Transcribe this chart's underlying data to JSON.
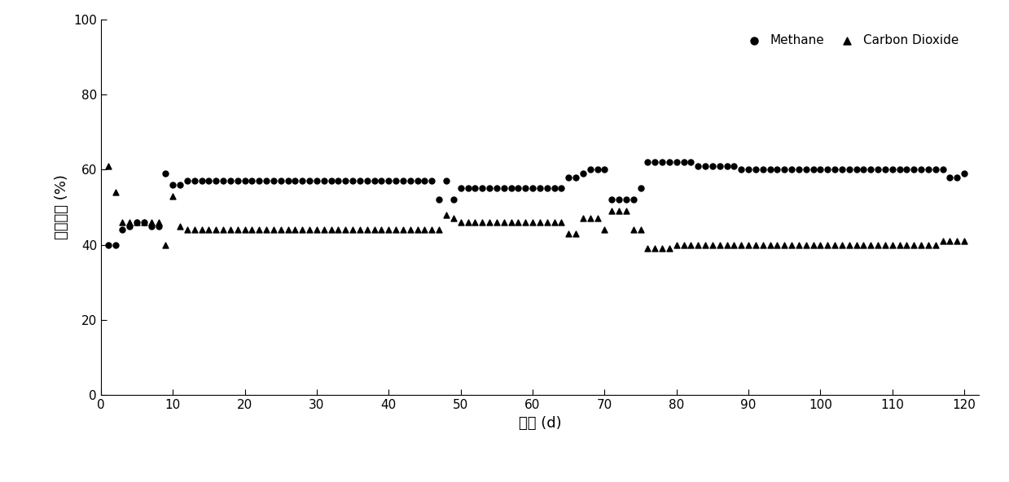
{
  "title": "",
  "xlabel": "时间 (d)",
  "ylabel": "气体成分 (%)",
  "xlim": [
    0,
    122
  ],
  "ylim": [
    0,
    100
  ],
  "xticks": [
    0,
    10,
    20,
    30,
    40,
    50,
    60,
    70,
    80,
    90,
    100,
    110,
    120
  ],
  "yticks": [
    0,
    20,
    40,
    60,
    80,
    100
  ],
  "legend_labels": [
    "Methane",
    "Carbon Dioxide"
  ],
  "methane": {
    "x": [
      1,
      2,
      3,
      4,
      5,
      6,
      7,
      8,
      9,
      10,
      11,
      12,
      13,
      14,
      15,
      16,
      17,
      18,
      19,
      20,
      21,
      22,
      23,
      24,
      25,
      26,
      27,
      28,
      29,
      30,
      31,
      32,
      33,
      34,
      35,
      36,
      37,
      38,
      39,
      40,
      41,
      42,
      43,
      44,
      45,
      46,
      47,
      48,
      49,
      50,
      51,
      52,
      53,
      54,
      55,
      56,
      57,
      58,
      59,
      60,
      61,
      62,
      63,
      64,
      65,
      66,
      67,
      68,
      69,
      70,
      71,
      72,
      73,
      74,
      75,
      76,
      77,
      78,
      79,
      80,
      81,
      82,
      83,
      84,
      85,
      86,
      87,
      88,
      89,
      90,
      91,
      92,
      93,
      94,
      95,
      96,
      97,
      98,
      99,
      100,
      101,
      102,
      103,
      104,
      105,
      106,
      107,
      108,
      109,
      110,
      111,
      112,
      113,
      114,
      115,
      116,
      117,
      118,
      119,
      120
    ],
    "y": [
      40,
      40,
      44,
      45,
      46,
      46,
      45,
      45,
      59,
      56,
      56,
      57,
      57,
      57,
      57,
      57,
      57,
      57,
      57,
      57,
      57,
      57,
      57,
      57,
      57,
      57,
      57,
      57,
      57,
      57,
      57,
      57,
      57,
      57,
      57,
      57,
      57,
      57,
      57,
      57,
      57,
      57,
      57,
      57,
      57,
      57,
      52,
      57,
      52,
      55,
      55,
      55,
      55,
      55,
      55,
      55,
      55,
      55,
      55,
      55,
      55,
      55,
      55,
      55,
      58,
      58,
      59,
      60,
      60,
      60,
      52,
      52,
      52,
      52,
      55,
      62,
      62,
      62,
      62,
      62,
      62,
      62,
      61,
      61,
      61,
      61,
      61,
      61,
      60,
      60,
      60,
      60,
      60,
      60,
      60,
      60,
      60,
      60,
      60,
      60,
      60,
      60,
      60,
      60,
      60,
      60,
      60,
      60,
      60,
      60,
      60,
      60,
      60,
      60,
      60,
      60,
      60,
      58,
      58,
      59
    ]
  },
  "co2": {
    "x": [
      1,
      2,
      3,
      4,
      5,
      6,
      7,
      8,
      9,
      10,
      11,
      12,
      13,
      14,
      15,
      16,
      17,
      18,
      19,
      20,
      21,
      22,
      23,
      24,
      25,
      26,
      27,
      28,
      29,
      30,
      31,
      32,
      33,
      34,
      35,
      36,
      37,
      38,
      39,
      40,
      41,
      42,
      43,
      44,
      45,
      46,
      47,
      48,
      49,
      50,
      51,
      52,
      53,
      54,
      55,
      56,
      57,
      58,
      59,
      60,
      61,
      62,
      63,
      64,
      65,
      66,
      67,
      68,
      69,
      70,
      71,
      72,
      73,
      74,
      75,
      76,
      77,
      78,
      79,
      80,
      81,
      82,
      83,
      84,
      85,
      86,
      87,
      88,
      89,
      90,
      91,
      92,
      93,
      94,
      95,
      96,
      97,
      98,
      99,
      100,
      101,
      102,
      103,
      104,
      105,
      106,
      107,
      108,
      109,
      110,
      111,
      112,
      113,
      114,
      115,
      116,
      117,
      118,
      119,
      120
    ],
    "y": [
      61,
      54,
      46,
      46,
      46,
      46,
      46,
      46,
      40,
      53,
      45,
      44,
      44,
      44,
      44,
      44,
      44,
      44,
      44,
      44,
      44,
      44,
      44,
      44,
      44,
      44,
      44,
      44,
      44,
      44,
      44,
      44,
      44,
      44,
      44,
      44,
      44,
      44,
      44,
      44,
      44,
      44,
      44,
      44,
      44,
      44,
      44,
      48,
      47,
      46,
      46,
      46,
      46,
      46,
      46,
      46,
      46,
      46,
      46,
      46,
      46,
      46,
      46,
      46,
      43,
      43,
      47,
      47,
      47,
      44,
      49,
      49,
      49,
      44,
      44,
      39,
      39,
      39,
      39,
      40,
      40,
      40,
      40,
      40,
      40,
      40,
      40,
      40,
      40,
      40,
      40,
      40,
      40,
      40,
      40,
      40,
      40,
      40,
      40,
      40,
      40,
      40,
      40,
      40,
      40,
      40,
      40,
      40,
      40,
      40,
      40,
      40,
      40,
      40,
      40,
      40,
      41,
      41,
      41,
      41
    ]
  },
  "marker_color": "#000000",
  "background_color": "#ffffff",
  "marker_size": 25,
  "tick_labelsize": 11,
  "label_fontsize": 13
}
